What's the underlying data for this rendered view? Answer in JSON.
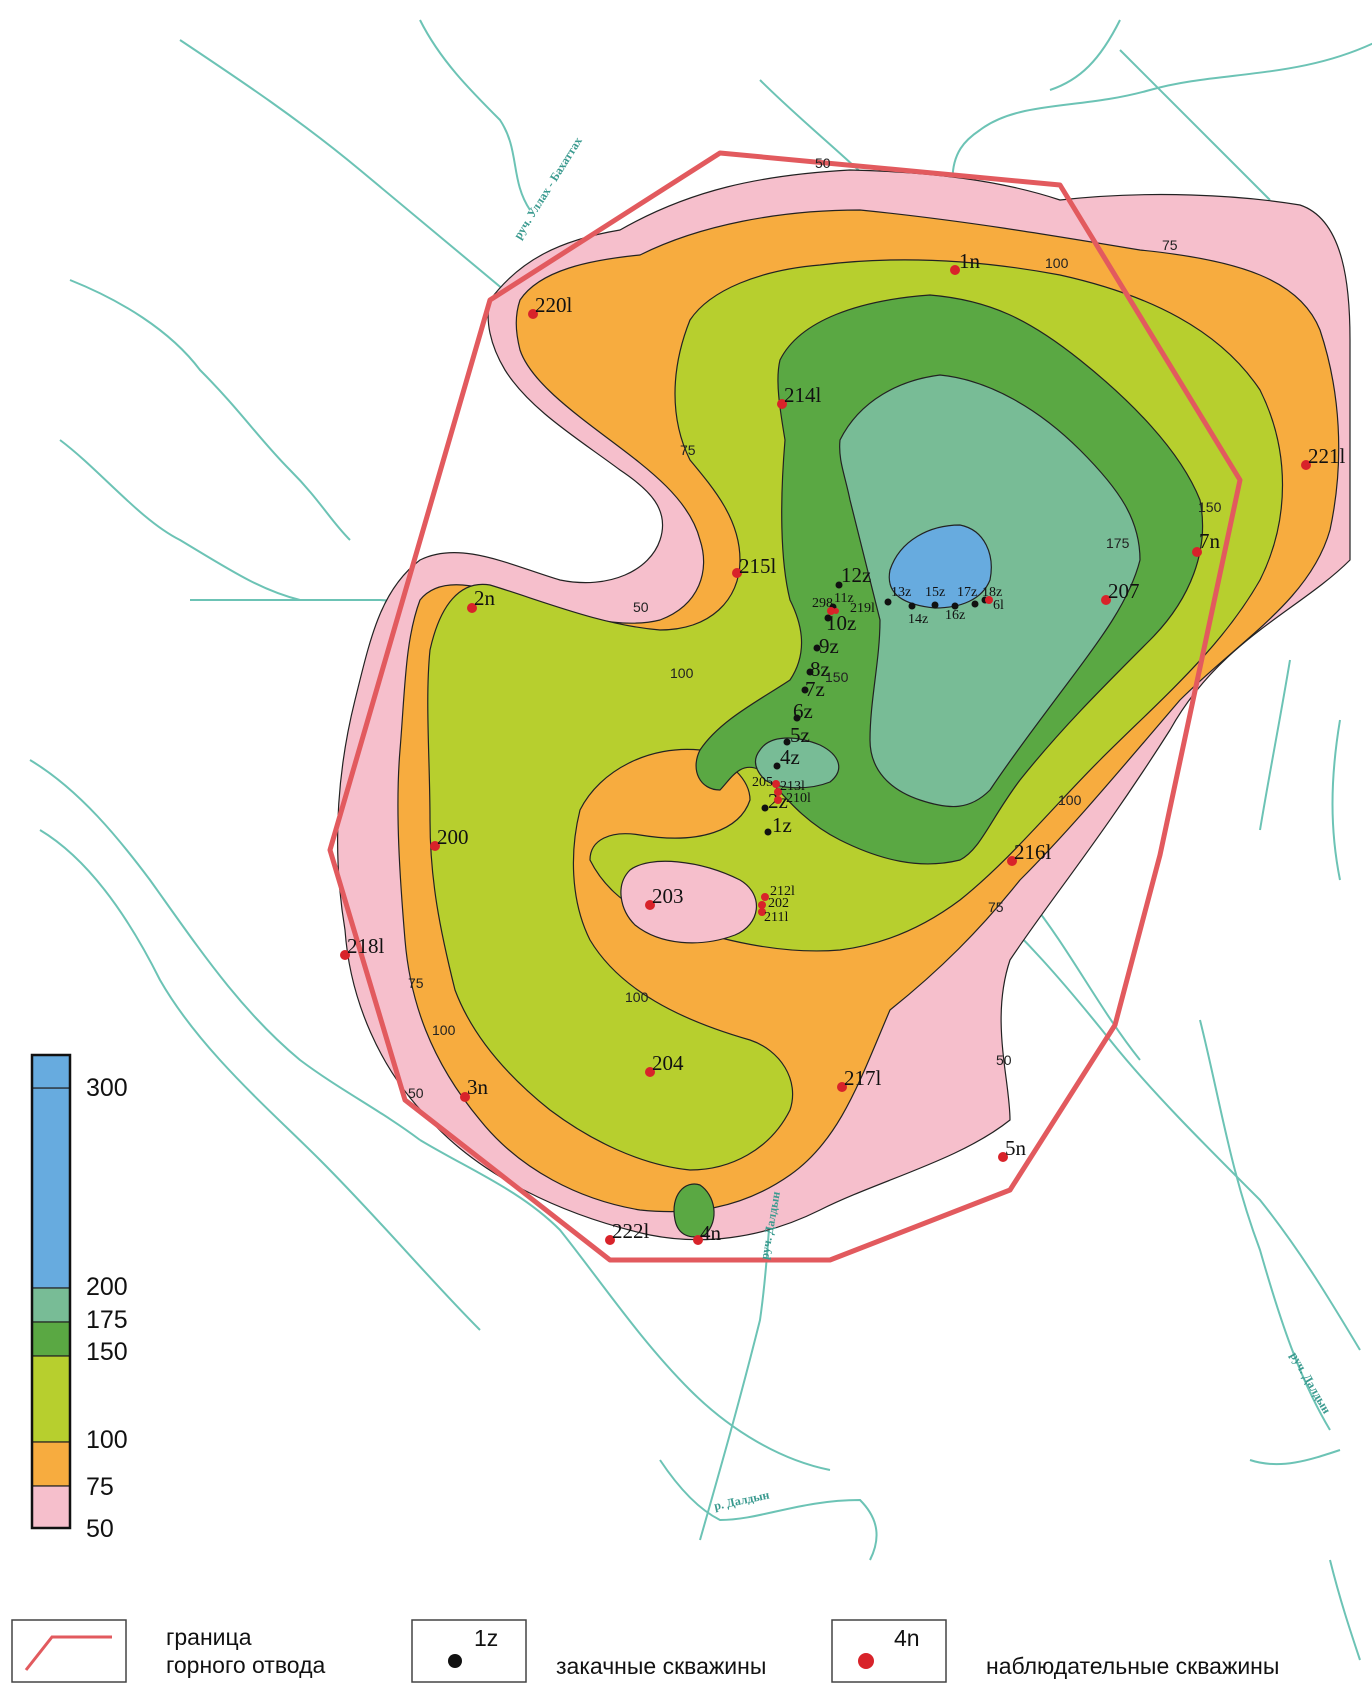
{
  "color_scale": {
    "ticks": [
      "300",
      "200",
      "175",
      "150",
      "100",
      "75",
      "50"
    ],
    "bands": [
      {
        "from": 200,
        "to": 300,
        "color": "#67abdf"
      },
      {
        "from": 175,
        "to": 200,
        "color": "#78bc96"
      },
      {
        "from": 150,
        "to": 175,
        "color": "#5aa843"
      },
      {
        "from": 100,
        "to": 150,
        "color": "#b7cf2e"
      },
      {
        "from": 75,
        "to": 100,
        "color": "#f7ac3f"
      },
      {
        "from": 50,
        "to": 75,
        "color": "#f6bfcc"
      }
    ]
  },
  "contour_labels": {
    "c50_top": "50",
    "c75_ne": "75",
    "c100_ne": "100",
    "c75_w": "75",
    "c50_mid": "50",
    "c100_mid": "100",
    "c150_e": "150",
    "c175_e": "175",
    "c150_c": "150",
    "c100_se": "100",
    "c75_se": "75",
    "c75_sw": "75",
    "c100_sw": "100",
    "c50_sw": "50",
    "c100_s": "100",
    "c50_se": "50"
  },
  "rivers": {
    "nw": "руч. Уллах - Бахаттах",
    "south": "р. Далдын",
    "se": "руч. Далдын",
    "sc": "руч. Далдын"
  },
  "injection_wells": [
    {
      "label": "1z"
    },
    {
      "label": "2z"
    },
    {
      "label": "4z"
    },
    {
      "label": "5z"
    },
    {
      "label": "6z"
    },
    {
      "label": "7z"
    },
    {
      "label": "8z"
    },
    {
      "label": "9z"
    },
    {
      "label": "10z"
    },
    {
      "label": "11z"
    },
    {
      "label": "12z"
    },
    {
      "label": "13z"
    },
    {
      "label": "14z"
    },
    {
      "label": "15z"
    },
    {
      "label": "16z"
    },
    {
      "label": "17z"
    },
    {
      "label": "18z"
    }
  ],
  "observation_wells": [
    {
      "label": "1n"
    },
    {
      "label": "2n"
    },
    {
      "label": "3n"
    },
    {
      "label": "4n"
    },
    {
      "label": "5n"
    },
    {
      "label": "7n"
    },
    {
      "label": "200"
    },
    {
      "label": "203"
    },
    {
      "label": "204"
    },
    {
      "label": "207"
    },
    {
      "label": "214l"
    },
    {
      "label": "215l"
    },
    {
      "label": "216l"
    },
    {
      "label": "217l"
    },
    {
      "label": "218l"
    },
    {
      "label": "220l"
    },
    {
      "label": "221l"
    },
    {
      "label": "222l"
    },
    {
      "label": "205"
    },
    {
      "label": "213l"
    },
    {
      "label": "210l"
    },
    {
      "label": "212l"
    },
    {
      "label": "202"
    },
    {
      "label": "211l"
    },
    {
      "label": "298"
    },
    {
      "label": "219l"
    },
    {
      "label": "6l"
    }
  ],
  "legend": {
    "boundary_label_line1": "граница",
    "boundary_label_line2": "горного отвода",
    "injection_sample": "1z",
    "injection_label": "закачные скважины",
    "observation_sample": "4n",
    "observation_label": "наблюдательные скважины"
  },
  "colors": {
    "boundary": "#e25a5e",
    "river": "#6cc3b5",
    "observation_well": "#d8232a",
    "injection_well": "#111111"
  }
}
